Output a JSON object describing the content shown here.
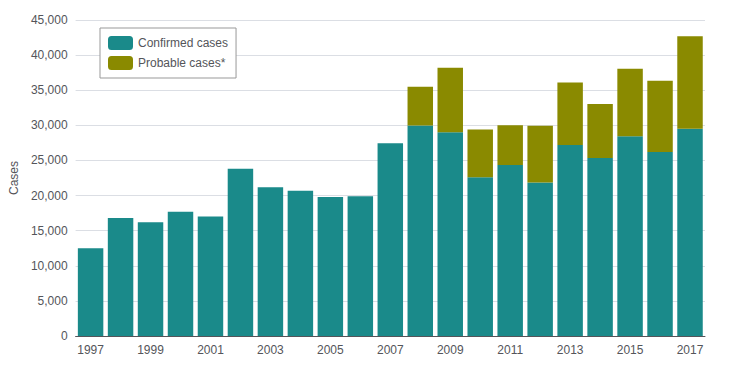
{
  "chart_data": {
    "type": "bar",
    "stacked": true,
    "categories": [
      "1997",
      null,
      "1999",
      null,
      "2001",
      null,
      "2003",
      null,
      "2005",
      null,
      "2007",
      null,
      "2009",
      null,
      "2011",
      null,
      "2013",
      null,
      "2015",
      null,
      "2017"
    ],
    "series": [
      {
        "name": "Confirmed cases",
        "color": "#1a8a8a",
        "values": [
          12500,
          16800,
          16200,
          17700,
          17000,
          23800,
          21200,
          20700,
          19800,
          19900,
          27444,
          29959,
          29001,
          22614,
          24364,
          21869,
          27203,
          25359,
          28453,
          26203,
          29513
        ]
      },
      {
        "name": "Probable cases*",
        "color": "#8a8a00",
        "values": [
          0,
          0,
          0,
          0,
          0,
          0,
          0,
          0,
          0,
          0,
          0,
          5551,
          9195,
          6789,
          5651,
          8088,
          8906,
          7667,
          9616,
          10156,
          13158
        ]
      }
    ],
    "ylabel": "Cases",
    "ylim": [
      0,
      45000
    ],
    "yticks": [
      0,
      {
        "value": 5000,
        "label": "5,000"
      },
      {
        "value": 10000,
        "label": "10,000"
      },
      {
        "value": 15000,
        "label": "15,000"
      },
      {
        "value": 20000,
        "label": "20,000"
      },
      {
        "value": 25000,
        "label": "25,000"
      },
      {
        "value": 30000,
        "label": "30,000"
      },
      {
        "value": 35000,
        "label": "35,000"
      },
      {
        "value": 40000,
        "label": "40,000"
      },
      {
        "value": 45000,
        "label": "45,000"
      }
    ],
    "grid": true,
    "legend": "upper left"
  }
}
